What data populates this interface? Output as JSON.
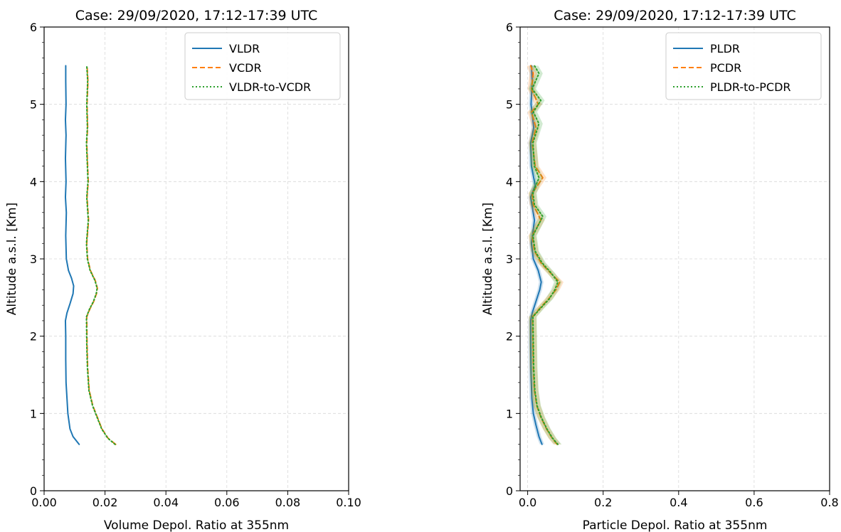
{
  "chart_data": [
    {
      "type": "line",
      "title": "Case: 29/09/2020, 17:12-17:39 UTC",
      "xlabel": "Volume Depol. Ratio at 355nm",
      "ylabel": "Altitude a.s.l. [Km]",
      "xlim": [
        0,
        0.1
      ],
      "ylim": [
        0,
        6
      ],
      "xticks": [
        "0.00",
        "0.02",
        "0.04",
        "0.06",
        "0.08",
        "0.10"
      ],
      "yticks": [
        "0",
        "1",
        "2",
        "3",
        "4",
        "5",
        "6"
      ],
      "grid": true,
      "legend_position": "top-right",
      "series": [
        {
          "name": "VLDR",
          "color": "#1f77b4",
          "style": "solid",
          "points": [
            [
              0.0115,
              0.6
            ],
            [
              0.0095,
              0.7
            ],
            [
              0.0085,
              0.8
            ],
            [
              0.0078,
              1.0
            ],
            [
              0.0075,
              1.2
            ],
            [
              0.0072,
              1.4
            ],
            [
              0.0071,
              1.7
            ],
            [
              0.0071,
              2.0
            ],
            [
              0.007,
              2.2
            ],
            [
              0.0075,
              2.3
            ],
            [
              0.0085,
              2.42
            ],
            [
              0.0095,
              2.55
            ],
            [
              0.0097,
              2.65
            ],
            [
              0.009,
              2.75
            ],
            [
              0.008,
              2.85
            ],
            [
              0.0073,
              3.0
            ],
            [
              0.0071,
              3.3
            ],
            [
              0.0073,
              3.6
            ],
            [
              0.007,
              3.8
            ],
            [
              0.0072,
              4.0
            ],
            [
              0.007,
              4.3
            ],
            [
              0.0072,
              4.6
            ],
            [
              0.007,
              4.8
            ],
            [
              0.0072,
              5.0
            ],
            [
              0.0071,
              5.3
            ],
            [
              0.0071,
              5.5
            ]
          ]
        },
        {
          "name": "VCDR",
          "color": "#ff7f0e",
          "style": "dashed",
          "points": [
            [
              0.0235,
              0.6
            ],
            [
              0.021,
              0.68
            ],
            [
              0.019,
              0.8
            ],
            [
              0.0175,
              0.95
            ],
            [
              0.016,
              1.1
            ],
            [
              0.0148,
              1.3
            ],
            [
              0.0143,
              1.6
            ],
            [
              0.0141,
              1.9
            ],
            [
              0.014,
              2.25
            ],
            [
              0.015,
              2.35
            ],
            [
              0.0163,
              2.45
            ],
            [
              0.0172,
              2.55
            ],
            [
              0.0175,
              2.62
            ],
            [
              0.0168,
              2.72
            ],
            [
              0.0152,
              2.85
            ],
            [
              0.0143,
              3.0
            ],
            [
              0.014,
              3.2
            ],
            [
              0.0146,
              3.5
            ],
            [
              0.0141,
              3.8
            ],
            [
              0.0145,
              4.0
            ],
            [
              0.0143,
              4.2
            ],
            [
              0.014,
              4.5
            ],
            [
              0.0143,
              4.7
            ],
            [
              0.0141,
              5.0
            ],
            [
              0.0144,
              5.3
            ],
            [
              0.0141,
              5.5
            ]
          ]
        },
        {
          "name": "VLDR-to-VCDR",
          "color": "#2ca02c",
          "style": "dotted",
          "points": [
            [
              0.0233,
              0.6
            ],
            [
              0.0209,
              0.68
            ],
            [
              0.0189,
              0.8
            ],
            [
              0.0174,
              0.95
            ],
            [
              0.0159,
              1.1
            ],
            [
              0.0147,
              1.3
            ],
            [
              0.0142,
              1.6
            ],
            [
              0.014,
              1.9
            ],
            [
              0.0139,
              2.25
            ],
            [
              0.0149,
              2.35
            ],
            [
              0.0162,
              2.45
            ],
            [
              0.0171,
              2.55
            ],
            [
              0.0174,
              2.62
            ],
            [
              0.0167,
              2.72
            ],
            [
              0.0151,
              2.85
            ],
            [
              0.0142,
              3.0
            ],
            [
              0.0139,
              3.2
            ],
            [
              0.0145,
              3.5
            ],
            [
              0.014,
              3.8
            ],
            [
              0.0144,
              4.0
            ],
            [
              0.0142,
              4.2
            ],
            [
              0.0139,
              4.5
            ],
            [
              0.0142,
              4.7
            ],
            [
              0.014,
              5.0
            ],
            [
              0.0143,
              5.3
            ],
            [
              0.014,
              5.5
            ]
          ]
        }
      ]
    },
    {
      "type": "line",
      "title": "Case: 29/09/2020, 17:12-17:39 UTC",
      "xlabel": "Particle Depol. Ratio at 355nm",
      "ylabel": "Altitude a.s.l. [Km]",
      "xlim": [
        -0.02,
        0.8
      ],
      "ylim": [
        0,
        6
      ],
      "xticks": [
        "0.0",
        "0.2",
        "0.4",
        "0.6",
        "0.8"
      ],
      "yticks": [
        "0",
        "1",
        "2",
        "3",
        "4",
        "5",
        "6"
      ],
      "grid": true,
      "legend_position": "top-right",
      "series": [
        {
          "name": "PLDR",
          "color": "#1f77b4",
          "style": "solid",
          "points": [
            [
              0.038,
              0.6
            ],
            [
              0.03,
              0.7
            ],
            [
              0.022,
              0.85
            ],
            [
              0.015,
              1.0
            ],
            [
              0.011,
              1.2
            ],
            [
              0.009,
              1.5
            ],
            [
              0.008,
              1.9
            ],
            [
              0.008,
              2.2
            ],
            [
              0.012,
              2.3
            ],
            [
              0.022,
              2.45
            ],
            [
              0.032,
              2.6
            ],
            [
              0.036,
              2.7
            ],
            [
              0.028,
              2.85
            ],
            [
              0.015,
              3.0
            ],
            [
              0.01,
              3.2
            ],
            [
              0.018,
              3.5
            ],
            [
              0.008,
              3.8
            ],
            [
              0.02,
              3.95
            ],
            [
              0.01,
              4.2
            ],
            [
              0.008,
              4.5
            ],
            [
              0.016,
              4.7
            ],
            [
              0.009,
              5.0
            ],
            [
              0.012,
              5.3
            ],
            [
              0.01,
              5.5
            ]
          ]
        },
        {
          "name": "PCDR",
          "color": "#ff7f0e",
          "style": "dashed",
          "points": [
            [
              0.078,
              0.6
            ],
            [
              0.065,
              0.68
            ],
            [
              0.05,
              0.8
            ],
            [
              0.035,
              0.95
            ],
            [
              0.024,
              1.1
            ],
            [
              0.018,
              1.3
            ],
            [
              0.015,
              1.6
            ],
            [
              0.014,
              1.9
            ],
            [
              0.013,
              2.25
            ],
            [
              0.03,
              2.35
            ],
            [
              0.055,
              2.48
            ],
            [
              0.075,
              2.6
            ],
            [
              0.085,
              2.7
            ],
            [
              0.06,
              2.82
            ],
            [
              0.035,
              2.95
            ],
            [
              0.018,
              3.1
            ],
            [
              0.012,
              3.3
            ],
            [
              0.035,
              3.5
            ],
            [
              0.015,
              3.7
            ],
            [
              0.012,
              3.85
            ],
            [
              0.04,
              4.05
            ],
            [
              0.02,
              4.2
            ],
            [
              0.012,
              4.5
            ],
            [
              0.022,
              4.7
            ],
            [
              0.01,
              4.9
            ],
            [
              0.028,
              5.0
            ],
            [
              0.01,
              5.2
            ],
            [
              0.015,
              5.4
            ],
            [
              0.008,
              5.5
            ]
          ]
        },
        {
          "name": "PLDR-to-PCDR",
          "color": "#2ca02c",
          "style": "dotted",
          "points": [
            [
              0.08,
              0.6
            ],
            [
              0.066,
              0.68
            ],
            [
              0.051,
              0.8
            ],
            [
              0.036,
              0.95
            ],
            [
              0.025,
              1.1
            ],
            [
              0.019,
              1.3
            ],
            [
              0.016,
              1.6
            ],
            [
              0.015,
              1.9
            ],
            [
              0.014,
              2.25
            ],
            [
              0.032,
              2.35
            ],
            [
              0.057,
              2.48
            ],
            [
              0.072,
              2.6
            ],
            [
              0.08,
              2.7
            ],
            [
              0.062,
              2.82
            ],
            [
              0.038,
              2.95
            ],
            [
              0.02,
              3.1
            ],
            [
              0.014,
              3.3
            ],
            [
              0.04,
              3.55
            ],
            [
              0.018,
              3.7
            ],
            [
              0.014,
              3.85
            ],
            [
              0.03,
              4.05
            ],
            [
              0.018,
              4.2
            ],
            [
              0.014,
              4.5
            ],
            [
              0.03,
              4.75
            ],
            [
              0.015,
              4.9
            ],
            [
              0.035,
              5.05
            ],
            [
              0.012,
              5.2
            ],
            [
              0.03,
              5.4
            ],
            [
              0.018,
              5.5
            ]
          ]
        }
      ]
    }
  ]
}
